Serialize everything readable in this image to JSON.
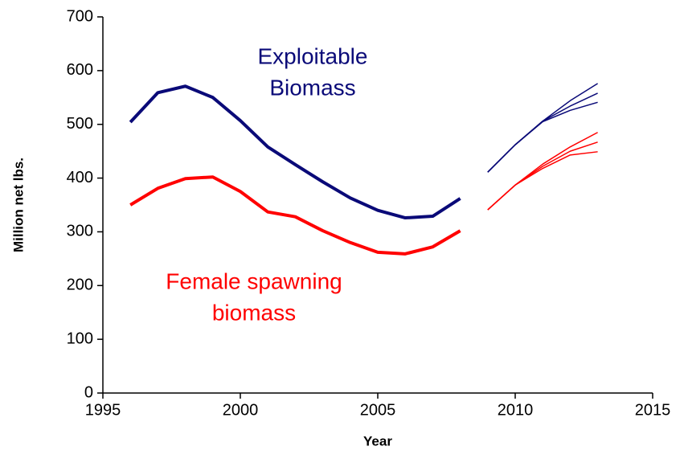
{
  "chart_data": {
    "type": "line",
    "xlabel": "Year",
    "ylabel": "Million net lbs.",
    "x": [
      1996,
      1997,
      1998,
      1999,
      2000,
      2001,
      2002,
      2003,
      2004,
      2005,
      2006,
      2007,
      2008,
      2009,
      2010,
      2011,
      2012,
      2013
    ],
    "series": [
      {
        "color": "#0a0a78",
        "width": 4,
        "values": [
          504,
          559,
          571,
          550,
          507,
          458,
          425,
          393,
          363,
          340,
          326,
          329,
          362,
          null,
          null,
          null,
          null,
          null
        ]
      },
      {
        "color": "#ff0000",
        "width": 4,
        "values": [
          350,
          381,
          399,
          402,
          375,
          337,
          328,
          302,
          280,
          262,
          259,
          272,
          302,
          null,
          null,
          null,
          null,
          null
        ]
      },
      {
        "color": "#0a0a78",
        "width": 1.5,
        "values": [
          null,
          null,
          null,
          null,
          null,
          null,
          null,
          null,
          null,
          null,
          null,
          null,
          null,
          411,
          462,
          506,
          544,
          576
        ]
      },
      {
        "color": "#0a0a78",
        "width": 1.5,
        "values": [
          null,
          null,
          null,
          null,
          null,
          null,
          null,
          null,
          null,
          null,
          null,
          null,
          null,
          411,
          462,
          506,
          534,
          558
        ]
      },
      {
        "color": "#0a0a78",
        "width": 1.5,
        "values": [
          null,
          null,
          null,
          null,
          null,
          null,
          null,
          null,
          null,
          null,
          null,
          null,
          null,
          411,
          462,
          505,
          526,
          541
        ]
      },
      {
        "color": "#ff0000",
        "width": 1.5,
        "values": [
          null,
          null,
          null,
          null,
          null,
          null,
          null,
          null,
          null,
          null,
          null,
          null,
          null,
          341,
          387,
          426,
          458,
          485
        ]
      },
      {
        "color": "#ff0000",
        "width": 1.5,
        "values": [
          null,
          null,
          null,
          null,
          null,
          null,
          null,
          null,
          null,
          null,
          null,
          null,
          null,
          341,
          387,
          422,
          450,
          467
        ]
      },
      {
        "color": "#ff0000",
        "width": 1.5,
        "values": [
          null,
          null,
          null,
          null,
          null,
          null,
          null,
          null,
          null,
          null,
          null,
          null,
          null,
          341,
          387,
          418,
          443,
          449
        ]
      }
    ],
    "annotations": [
      {
        "lines": [
          "Exploitable",
          "Biomass"
        ],
        "color": "#0a0a78"
      },
      {
        "lines": [
          "Female spawning",
          "biomass"
        ],
        "color": "#ff0000"
      }
    ],
    "xlim": [
      1995,
      2015
    ],
    "xticks": [
      1995,
      2000,
      2005,
      2010,
      2015
    ],
    "ylim": [
      0,
      700
    ],
    "yticks": [
      0,
      100,
      200,
      300,
      400,
      500,
      600,
      700
    ],
    "grid": false
  }
}
